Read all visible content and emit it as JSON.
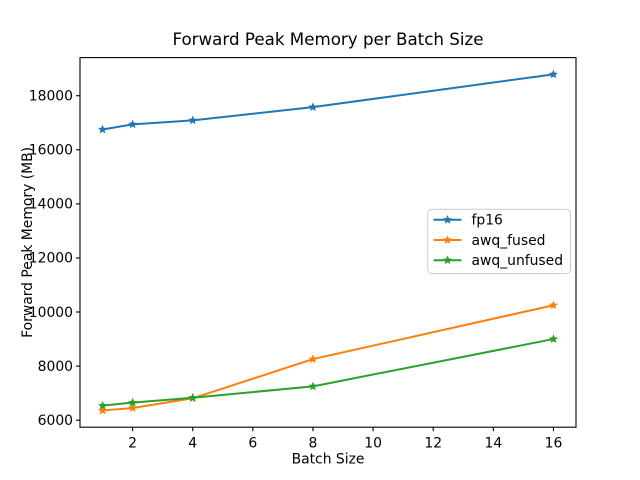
{
  "figure": {
    "background": "#ffffff"
  },
  "chart_data": {
    "type": "line",
    "title": "Forward Peak Memory per Batch Size",
    "xlabel": "Batch Size",
    "ylabel": "Forward Peak Memory (MB)",
    "x": [
      1,
      2,
      4,
      8,
      16
    ],
    "series": [
      {
        "name": "fp16",
        "color": "#1f77b4",
        "marker": "star",
        "values": [
          16750,
          16940,
          17090,
          17580,
          18790
        ]
      },
      {
        "name": "awq_fused",
        "color": "#ff7f0e",
        "marker": "star",
        "values": [
          6360,
          6450,
          6810,
          8260,
          10250
        ]
      },
      {
        "name": "awq_unfused",
        "color": "#2ca02c",
        "marker": "star",
        "values": [
          6540,
          6650,
          6830,
          7250,
          9000
        ]
      }
    ],
    "xticks": [
      2,
      4,
      6,
      8,
      10,
      12,
      14,
      16
    ],
    "yticks": [
      6000,
      8000,
      10000,
      12000,
      14000,
      16000,
      18000
    ],
    "xlim": [
      0.25,
      16.75
    ],
    "ylim": [
      5740,
      19410
    ],
    "grid": false,
    "legend": {
      "position": "center right",
      "entries": [
        "fp16",
        "awq_fused",
        "awq_unfused"
      ],
      "border_color": "#cccccc",
      "background": "#ffffff"
    },
    "axis_color": "#000000",
    "text_color": "#000000"
  }
}
